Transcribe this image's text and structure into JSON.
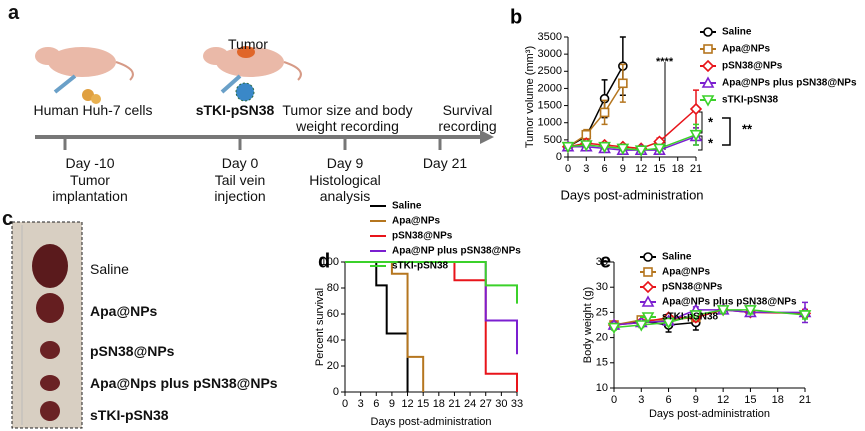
{
  "panel_a": {
    "label": "a",
    "tumor": "Tumor",
    "cells": "Human Huh-7 cells",
    "drug": "sTKI-pSN38",
    "recording": "Tumor size and body weight recording",
    "survival": "Survival recording",
    "timeline": [
      {
        "day": "Day -10",
        "event": "Tumor implantation"
      },
      {
        "day": "Day 0",
        "event": "Tail vein injection"
      },
      {
        "day": "Day 9",
        "event": "Histological analysis"
      },
      {
        "day": "Day 21"
      }
    ]
  },
  "panel_c": {
    "label": "c",
    "groups": [
      "Saline",
      "Apa@NPs",
      "pSN38@NPs",
      "Apa@Nps plus pSN38@NPs",
      "sTKI-pSN38"
    ]
  },
  "chart_data": [
    {
      "type": "line",
      "panel": "b",
      "y_label": "Tumor volume (mm³)",
      "x_label": "Days post-administration",
      "x": [
        0,
        3,
        6,
        9,
        12,
        15,
        21
      ],
      "xlim": [
        0,
        21
      ],
      "xticks": [
        0,
        3,
        6,
        9,
        12,
        15,
        18,
        21
      ],
      "ylim": [
        0,
        3500
      ],
      "yticks": [
        0,
        500,
        1000,
        1500,
        2000,
        2500,
        3000,
        3500
      ],
      "annotations": [
        "****",
        "*",
        "*",
        "**"
      ],
      "series": [
        {
          "name": "Saline",
          "color": "#000000",
          "marker": "circle",
          "values": [
            300,
            600,
            1700,
            2650,
            null,
            null,
            null
          ],
          "errors": [
            50,
            100,
            550,
            850,
            null,
            null,
            null
          ]
        },
        {
          "name": "Apa@NPs",
          "color": "#b5761f",
          "marker": "square",
          "values": [
            300,
            650,
            1300,
            2150,
            null,
            null,
            null
          ],
          "errors": [
            50,
            150,
            350,
            550,
            null,
            null,
            null
          ]
        },
        {
          "name": "pSN38@NPs",
          "color": "#e8141a",
          "marker": "diamond",
          "values": [
            300,
            400,
            350,
            300,
            250,
            450,
            1400
          ],
          "errors": [
            50,
            80,
            80,
            80,
            60,
            100,
            550
          ]
        },
        {
          "name": "Apa@NPs plus pSN38@NPs",
          "color": "#7b1fd0",
          "marker": "triangle",
          "values": [
            300,
            300,
            250,
            200,
            200,
            200,
            600
          ],
          "errors": [
            50,
            60,
            60,
            50,
            50,
            60,
            250
          ]
        },
        {
          "name": "sTKI-pSN38",
          "color": "#3bd12a",
          "marker": "triangle-down",
          "values": [
            300,
            350,
            300,
            250,
            200,
            250,
            650
          ],
          "errors": [
            50,
            60,
            60,
            50,
            50,
            60,
            300
          ]
        }
      ]
    },
    {
      "type": "survival",
      "panel": "d",
      "y_label": "Percent survival",
      "x_label": "Days post-administration",
      "xlim": [
        0,
        33
      ],
      "xticks": [
        0,
        3,
        6,
        9,
        12,
        15,
        18,
        21,
        24,
        27,
        30,
        33
      ],
      "ylim": [
        0,
        100
      ],
      "yticks": [
        0,
        20,
        40,
        60,
        80,
        100
      ],
      "series": [
        {
          "name": "Saline",
          "color": "#000000",
          "x": [
            0,
            6,
            6,
            8,
            8,
            12,
            12
          ],
          "values": [
            100,
            100,
            82,
            82,
            45,
            45,
            0
          ]
        },
        {
          "name": "Apa@NPs",
          "color": "#b5761f",
          "x": [
            0,
            9,
            9,
            12,
            12,
            15,
            15
          ],
          "values": [
            100,
            100,
            91,
            91,
            27,
            27,
            0
          ]
        },
        {
          "name": "pSN38@NPs",
          "color": "#e8141a",
          "x": [
            0,
            21,
            21,
            27,
            27,
            33,
            33
          ],
          "values": [
            100,
            100,
            86,
            86,
            14,
            14,
            0
          ]
        },
        {
          "name": "Apa@NP plus pSN38@NPs",
          "color": "#7b1fd0",
          "x": [
            0,
            27,
            27,
            33,
            33
          ],
          "values": [
            100,
            100,
            55,
            55,
            29
          ]
        },
        {
          "name": "sTKI-pSN38",
          "color": "#3bd12a",
          "x": [
            0,
            27,
            27,
            33,
            33
          ],
          "values": [
            100,
            100,
            82,
            82,
            68
          ]
        }
      ]
    },
    {
      "type": "line",
      "panel": "e",
      "y_label": "Body weight (g)",
      "x_label": "Days post-administration",
      "x": [
        0,
        3,
        6,
        9,
        12,
        15,
        21
      ],
      "xlim": [
        0,
        21
      ],
      "xticks": [
        0,
        3,
        6,
        9,
        12,
        15,
        18,
        21
      ],
      "ylim": [
        10,
        35
      ],
      "yticks": [
        10,
        15,
        20,
        25,
        30,
        35
      ],
      "series": [
        {
          "name": "Saline",
          "color": "#000000",
          "marker": "circle",
          "values": [
            22.5,
            23.3,
            22.5,
            23,
            null,
            null,
            null
          ],
          "errors": [
            0.6,
            0.5,
            1.4,
            1.5,
            null,
            null,
            null
          ]
        },
        {
          "name": "Apa@NPs",
          "color": "#b5761f",
          "marker": "square",
          "values": [
            22.5,
            23.5,
            23.5,
            24,
            null,
            null,
            null
          ],
          "errors": [
            0.5,
            0.5,
            0.6,
            0.8,
            null,
            null,
            null
          ]
        },
        {
          "name": "pSN38@NPs",
          "color": "#e8141a",
          "marker": "diamond",
          "values": [
            22.5,
            23,
            24,
            24,
            25.5,
            25,
            24.8
          ],
          "errors": [
            0.5,
            0.5,
            0.6,
            0.8,
            0.6,
            0.6,
            0.8
          ]
        },
        {
          "name": "Apa@NPs plus pSN38@NPs",
          "color": "#7b1fd0",
          "marker": "triangle",
          "values": [
            22.5,
            23,
            23.3,
            25.5,
            25.5,
            25,
            25
          ],
          "errors": [
            0.5,
            0.5,
            0.6,
            0.6,
            0.6,
            0.6,
            2
          ]
        },
        {
          "name": "sTKI-pSN38",
          "color": "#3bd12a",
          "marker": "triangle-down",
          "values": [
            22,
            22.5,
            23,
            24.5,
            25.5,
            25.5,
            24.5
          ],
          "errors": [
            0.5,
            0.5,
            0.6,
            0.6,
            0.6,
            0.8,
            0.8
          ]
        }
      ]
    }
  ]
}
